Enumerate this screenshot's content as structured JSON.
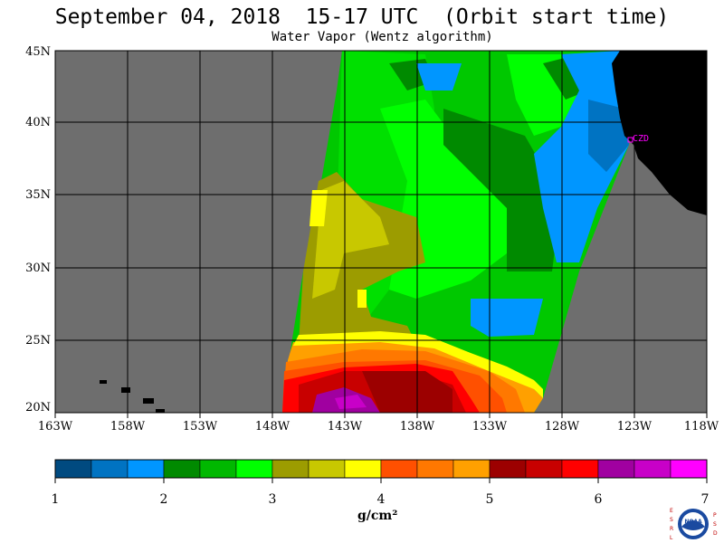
{
  "title": "September 04, 2018  15-17 UTC  (Orbit start time)",
  "subtitle": "Water Vapor (Wentz algorithm)",
  "lat_labels": [
    "45N",
    "40N",
    "35N",
    "30N",
    "25N",
    "20N"
  ],
  "lon_labels": [
    "163W",
    "158W",
    "153W",
    "148W",
    "143W",
    "138W",
    "133W",
    "128W",
    "123W",
    "118W"
  ],
  "station_label": "CZD",
  "colorbar": {
    "tick_labels": [
      "1",
      "2",
      "3",
      "4",
      "5",
      "6",
      "7"
    ],
    "unit": "g/cm²",
    "colors": [
      "#004a80",
      "#0073c2",
      "#0096ff",
      "#008a00",
      "#00b800",
      "#00ff00",
      "#9c9c00",
      "#c8c800",
      "#ffff00",
      "#ff5000",
      "#ff7800",
      "#ffa000",
      "#9c0000",
      "#c80000",
      "#ff0000",
      "#a000a0",
      "#c800c8",
      "#ff00ff"
    ]
  },
  "colors": {
    "land_mask": "#6e6e6e",
    "coast": "#000000",
    "station": "#ff00ff"
  },
  "logo_text": {
    "left": "ESRL",
    "right": "PSD",
    "center": "NOAA"
  }
}
